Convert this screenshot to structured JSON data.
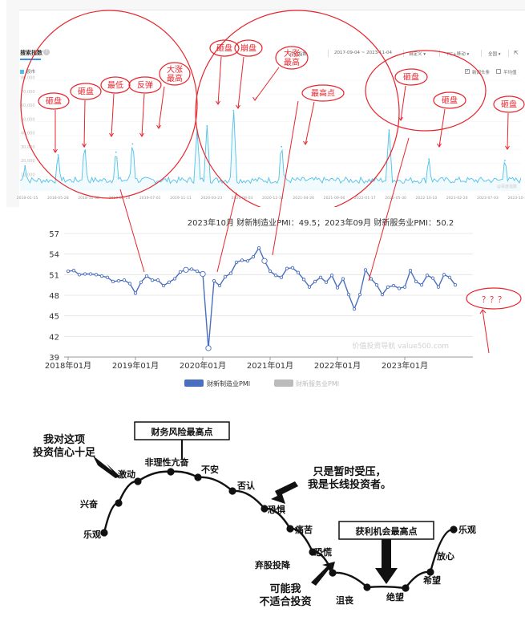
{
  "search_index": {
    "tab_label": "搜索指数",
    "help_icon": "question-circle-icon",
    "legend_label": "股市",
    "toolbar": {
      "compare_label": "对比指数",
      "date_range": "2017-09-04 ~ 2023-11-04",
      "custom_label": "自定义",
      "device_label": "PC+移动",
      "region_label": "全国",
      "export_icon": "export-icon"
    },
    "checkbox_news": "新闻头条",
    "checkbox_avg": "平均值",
    "watermark": "@百度指数",
    "series_color": "#4fc1e9"
  },
  "chart_data": [
    {
      "type": "area",
      "title": "",
      "series": [
        {
          "name": "股市",
          "values": []
        }
      ],
      "x_tick_labels": [
        "2018-01-15",
        "2018-05-28",
        "2018-10-08",
        "2019-02-18",
        "2019-07-01",
        "2019-11-11",
        "2020-03-23",
        "2020-08-03",
        "2020-12-14",
        "2021-04-26",
        "2021-09-06",
        "2022-01-17",
        "2022-05-30",
        "2022-10-10",
        "2023-02-20",
        "2023-07-03",
        "2023-10-30"
      ],
      "y_tick_labels": [
        "10,000",
        "20,000",
        "30,000",
        "40,000",
        "50,000",
        "60,000",
        "70,000",
        "80,000"
      ],
      "ylim": [
        0,
        80000
      ],
      "grid": true,
      "spikes": [
        {
          "x": "2018-02-05",
          "y": 18000
        },
        {
          "x": "2018-06-25",
          "y": 26000
        },
        {
          "x": "2018-10-15",
          "y": 32000
        },
        {
          "x": "2019-02-25",
          "y": 28000
        },
        {
          "x": "2019-05-06",
          "y": 34000
        },
        {
          "x": "2020-02-03",
          "y": 44000
        },
        {
          "x": "2020-03-16",
          "y": 47000
        },
        {
          "x": "2020-07-06",
          "y": 58000
        },
        {
          "x": "2021-01-25",
          "y": 32000
        },
        {
          "x": "2022-04-25",
          "y": 44000
        },
        {
          "x": "2022-10-10",
          "y": 23000
        },
        {
          "x": "2023-08-28",
          "y": 22000
        }
      ],
      "annotations": [
        "砸盘",
        "砸盘",
        "最低",
        "反弹",
        "大涨\n最高",
        "砸盘",
        "崩盘",
        "大涨\n最高",
        "最高点",
        "砸盘",
        "砸盘",
        "砸盘"
      ]
    },
    {
      "type": "line",
      "title": "2023年10月 财新制造业PMI：49.5；2023年09月 财新服务业PMI：50.2",
      "ylim": [
        39,
        57
      ],
      "y_ticks": [
        39,
        42,
        45,
        48,
        51,
        54,
        57
      ],
      "x_tick_labels": [
        "2018年01月",
        "2019年01月",
        "2020年01月",
        "2021年01月",
        "2022年01月",
        "2023年01月"
      ],
      "start": "2018-01",
      "series": [
        {
          "name": "财新制造业PMI",
          "color": "#4a6fbf",
          "values": [
            51.5,
            51.6,
            51.0,
            51.1,
            51.1,
            51.0,
            50.8,
            50.6,
            50.0,
            50.1,
            50.2,
            49.7,
            48.3,
            49.9,
            50.8,
            50.2,
            50.2,
            49.4,
            49.9,
            50.4,
            51.4,
            51.7,
            51.8,
            51.5,
            51.1,
            40.3,
            50.1,
            49.4,
            50.7,
            51.2,
            52.8,
            53.1,
            53.0,
            53.6,
            54.9,
            53.0,
            51.5,
            50.9,
            50.6,
            51.9,
            52.0,
            51.3,
            50.3,
            49.2,
            50.0,
            50.6,
            49.9,
            50.9,
            49.1,
            50.4,
            48.1,
            46.0,
            48.1,
            51.7,
            50.4,
            49.5,
            48.1,
            49.2,
            49.4,
            49.0,
            49.2,
            51.6,
            50.0,
            49.5,
            50.9,
            50.5,
            49.2,
            51.0,
            50.6,
            49.5
          ]
        },
        {
          "name": "财新服务业PMI",
          "color": "#bbbbbb",
          "values": []
        }
      ],
      "annotation": "？？？",
      "watermark": "价值投资导航 value500.com"
    }
  ],
  "cycle_diagram": {
    "stages": [
      "乐观",
      "兴奋",
      "激动",
      "非理性亢奋",
      "不安",
      "否认",
      "恐惧",
      "痛苦",
      "恐慌",
      "沮丧",
      "绝望",
      "希望",
      "放心",
      "乐观"
    ],
    "box_top": "财务风险最高点",
    "box_bottom": "获利机会最高点",
    "note_left_top": "我对这项\n投资信心十足",
    "note_right": "只是暂时受压，\n我是长线投资者。",
    "note_left_bottom": "可能我\n不适合投资",
    "note_capitulate": "弃股投降"
  }
}
